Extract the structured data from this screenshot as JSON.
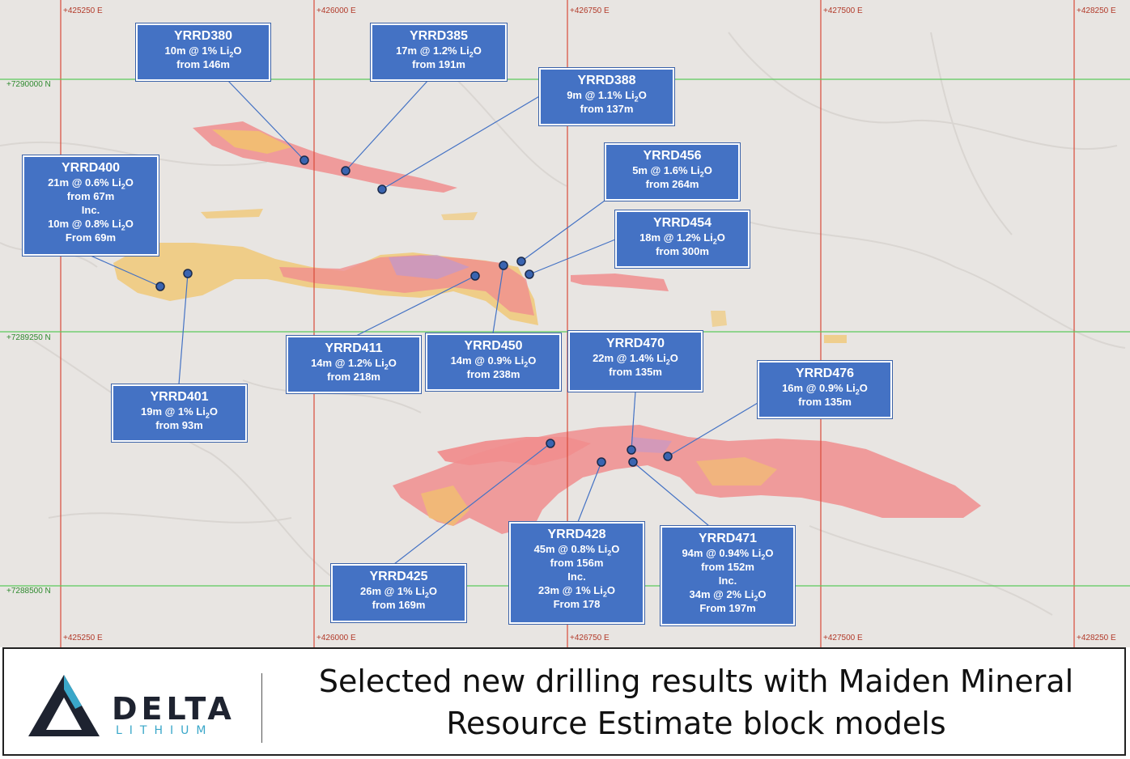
{
  "grid": {
    "eastings_top": [
      "+425250 E",
      "+426000 E",
      "+426750 E",
      "+427500 E",
      "+428250 E"
    ],
    "eastings_bottom": [
      "+425250 E",
      "+426000 E",
      "+426750 E",
      "+427500 E",
      "+428250 E"
    ],
    "northings": [
      "+7290000 N",
      "+7289250 N",
      "+7288500 N"
    ]
  },
  "callouts": {
    "yrrd380": {
      "id": "YRRD380",
      "l1": "10m @ 1% Li",
      "l1b": "O",
      "l2": "from 146m"
    },
    "yrrd385": {
      "id": "YRRD385",
      "l1": "17m @ 1.2% Li",
      "l1b": "O",
      "l2": "from  191m"
    },
    "yrrd388": {
      "id": "YRRD388",
      "l1": "9m @ 1.1% Li",
      "l1b": "O",
      "l2": "from  137m"
    },
    "yrrd400": {
      "id": "YRRD400",
      "l1": "21m @ 0.6% Li",
      "l1b": "O",
      "l2": "from  67m",
      "l3": "Inc.",
      "l4": "10m @ 0.8% Li",
      "l4b": "O",
      "l5": "From 69m"
    },
    "yrrd456": {
      "id": "YRRD456",
      "l1": "5m @ 1.6% Li",
      "l1b": "O",
      "l2": "from  264m"
    },
    "yrrd454": {
      "id": "YRRD454",
      "l1": "18m @ 1.2% Li",
      "l1b": "O",
      "l2": "from  300m"
    },
    "yrrd411": {
      "id": "YRRD411",
      "l1": "14m @ 1.2% Li",
      "l1b": "O",
      "l2": "from  218m"
    },
    "yrrd450": {
      "id": "YRRD450",
      "l1": "14m @ 0.9% Li",
      "l1b": "O",
      "l2": "from  238m"
    },
    "yrrd470": {
      "id": "YRRD470",
      "l1": "22m @ 1.4% Li",
      "l1b": "O",
      "l2": "from  135m"
    },
    "yrrd476": {
      "id": "YRRD476",
      "l1": "16m @ 0.9% Li",
      "l1b": "O",
      "l2": "from  135m"
    },
    "yrrd401": {
      "id": "YRRD401",
      "l1": "19m @ 1% Li",
      "l1b": "O",
      "l2": "from  93m"
    },
    "yrrd428": {
      "id": "YRRD428",
      "l1": "45m @ 0.8% Li",
      "l1b": "O",
      "l2": "from  156m",
      "l3": "Inc.",
      "l4": "23m @ 1% Li",
      "l4b": "O",
      "l5": "From 178"
    },
    "yrrd471": {
      "id": "YRRD471",
      "l1": "94m @ 0.94% Li",
      "l1b": "O",
      "l2": "from  152m",
      "l3": "Inc.",
      "l4": "34m @ 2% Li",
      "l4b": "O",
      "l5": "From 197m"
    },
    "yrrd425": {
      "id": "YRRD425",
      "l1": "26m @ 1% Li",
      "l1b": "O",
      "l2": "from  169m"
    }
  },
  "subscript": "2",
  "logo": {
    "word": "DELTA",
    "sub": "LITHIUM"
  },
  "caption": {
    "line1": "Selected new drilling results with Maiden Mineral",
    "line2": "Resource Estimate block models"
  },
  "colors": {
    "box": "#4472c4",
    "grid_e": "#d94a3a",
    "grid_n": "#5cc95c",
    "ore_red": "#f08080",
    "ore_yellow": "#f2c46a"
  }
}
